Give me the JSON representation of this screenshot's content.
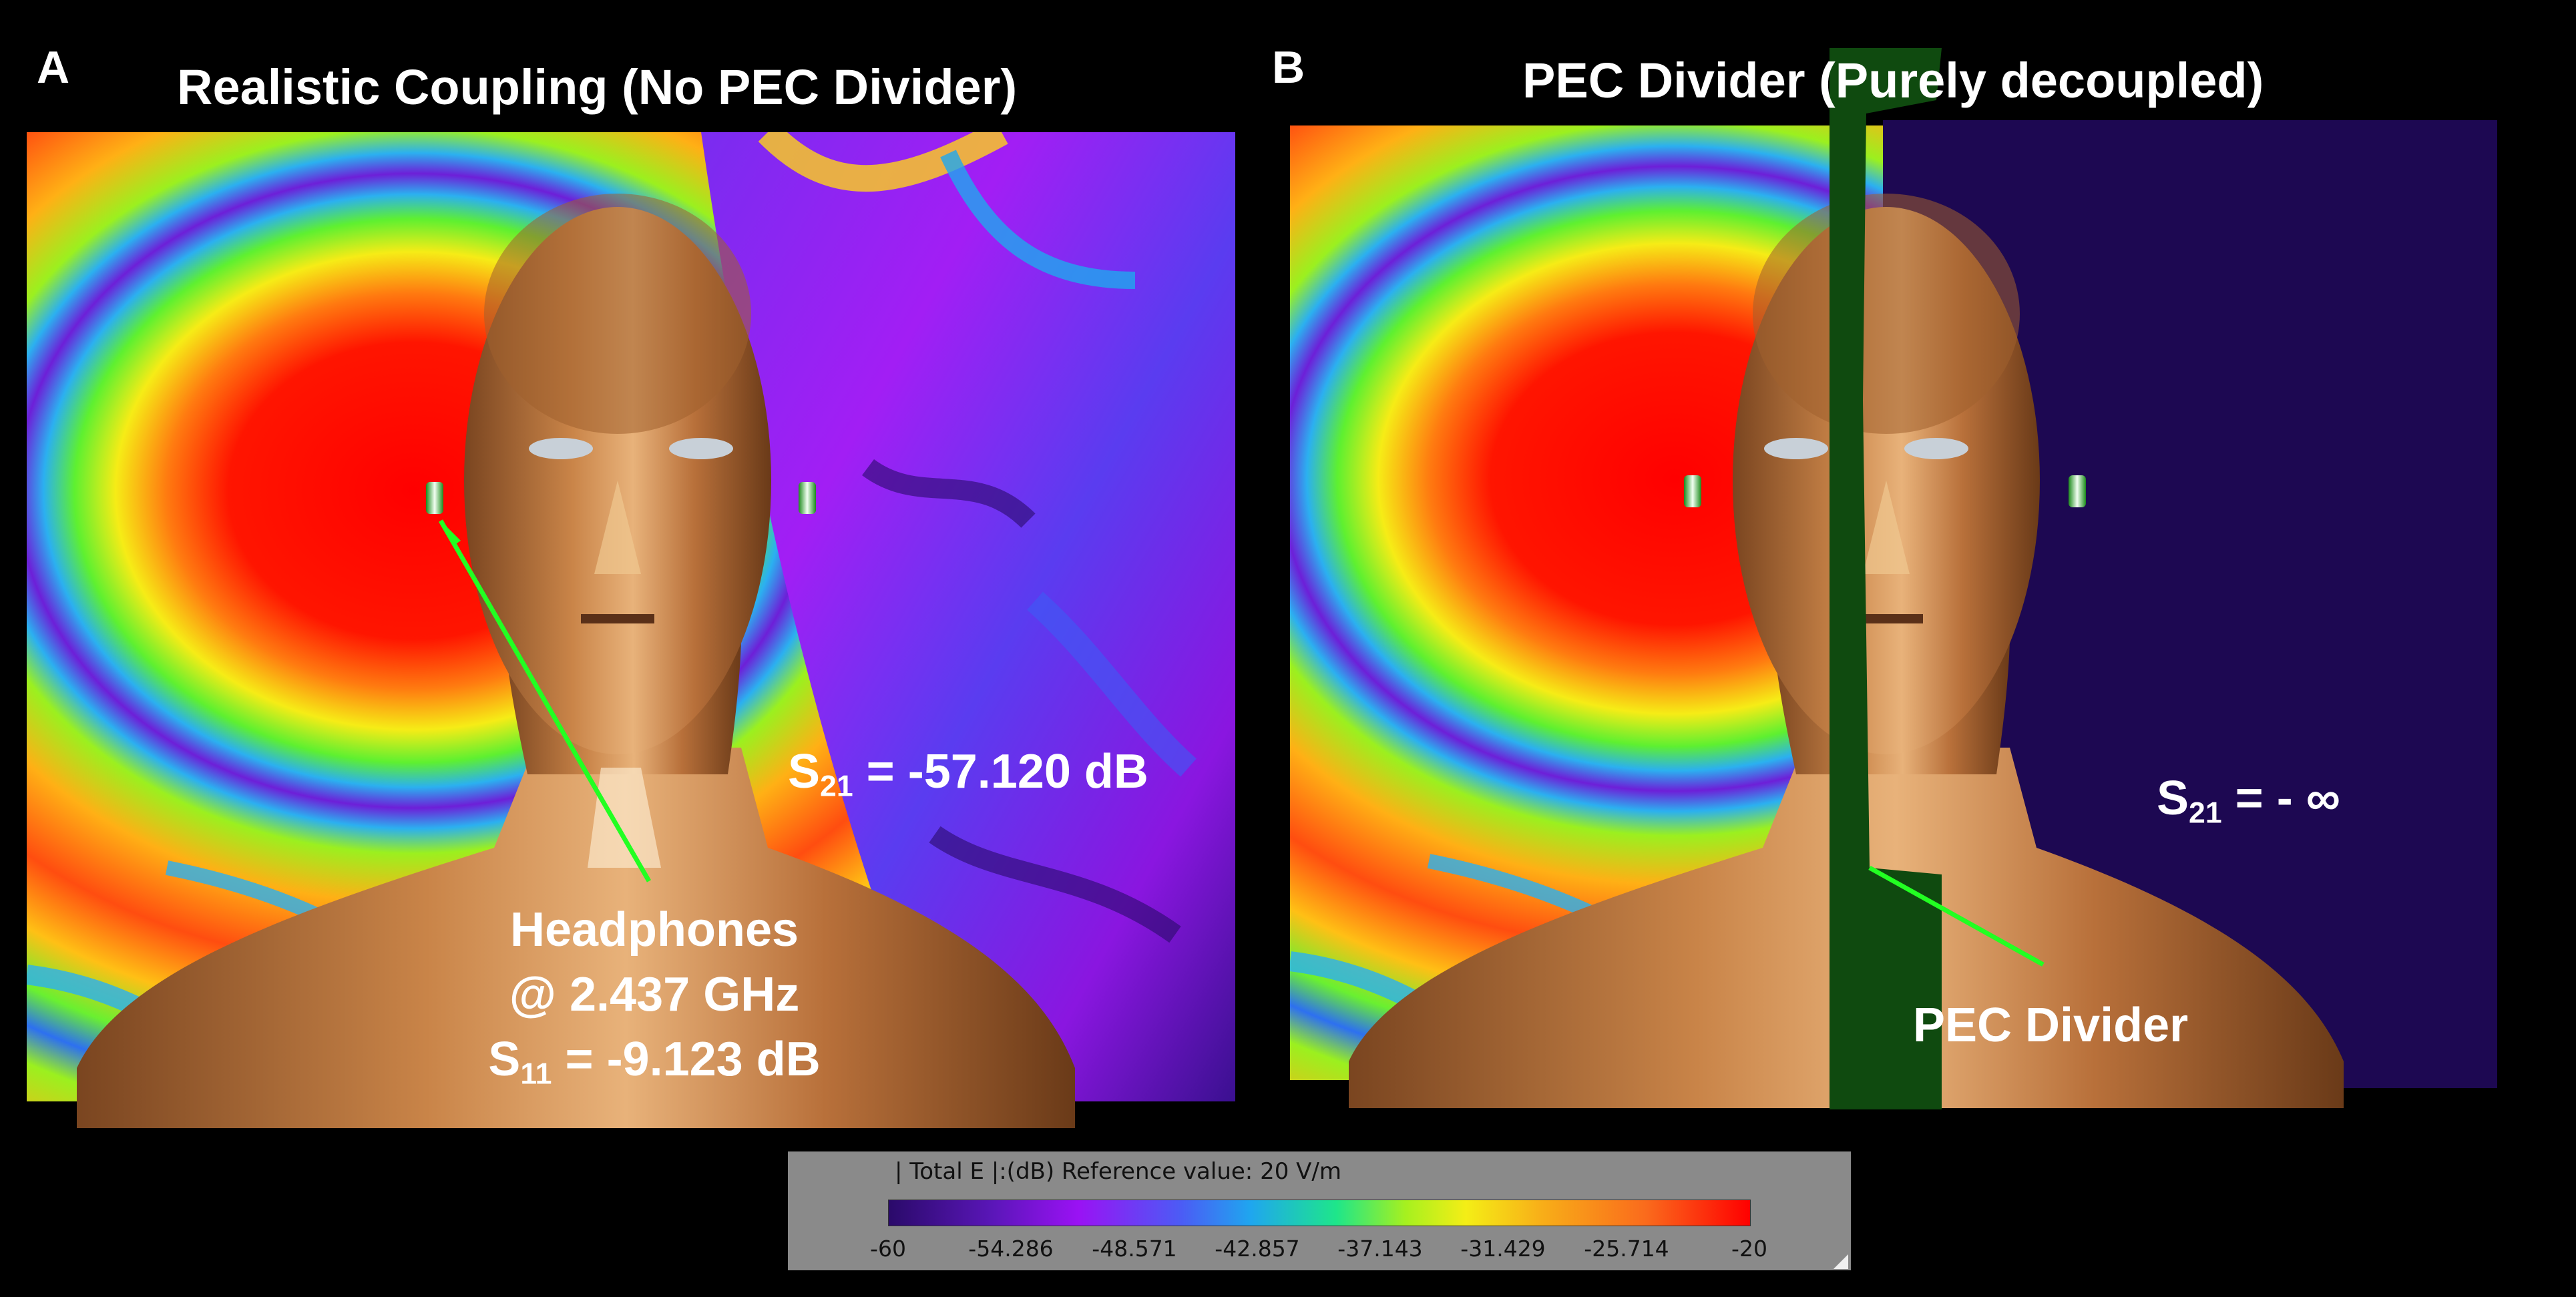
{
  "panels": [
    {
      "letter": "A",
      "title": "Realistic Coupling (No PEC Divider)"
    },
    {
      "letter": "B",
      "title": "PEC Divider (Purely decoupled)"
    }
  ],
  "annotations": {
    "a_s21": {
      "prefix": "S",
      "sub": "21",
      "suffix": " = -57.120 dB"
    },
    "headphones_line1": "Headphones",
    "headphones_line2": "@ 2.437 GHz",
    "a_s11": {
      "prefix": "S",
      "sub": "11",
      "suffix": " = -9.123 dB"
    },
    "b_s21": {
      "prefix": "S",
      "sub": "21",
      "suffix": " = - ∞"
    },
    "pec_label": "PEC Divider"
  },
  "colorbar": {
    "title": "| Total E |:(dB) Reference value: 20 V/m",
    "ticks": [
      "-60",
      "-54.286",
      "-48.571",
      "-42.857",
      "-37.143",
      "-31.429",
      "-25.714",
      "-20"
    ],
    "range": [
      -60,
      -20
    ]
  },
  "colors": {
    "pointer": "#22ff22",
    "pec_divider": "#0f4a0f",
    "decoupled_side": "#1d0852",
    "skin": "#b8703a"
  }
}
